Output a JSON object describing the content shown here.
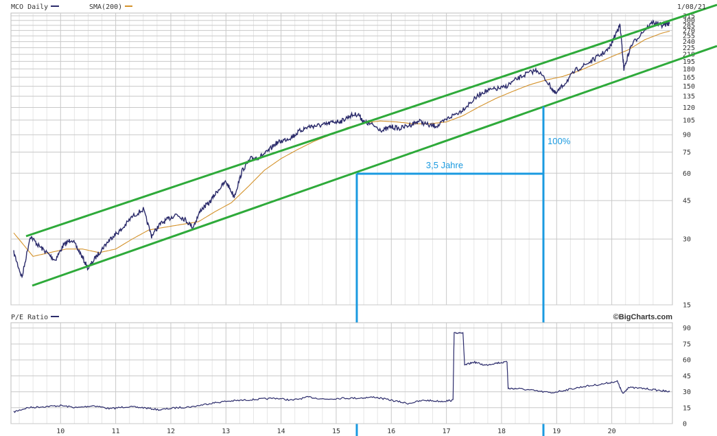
{
  "header": {
    "symbol_label": "MCO Daily",
    "sma_label": "SMA(200)",
    "date": "1/08/21",
    "pe_label": "P/E Ratio",
    "brand": "©BigCharts.com"
  },
  "annotations": {
    "duration_label": "3,5 Jahre",
    "gain_label": "100%"
  },
  "colors": {
    "price": "#2b2b6b",
    "sma": "#d4922a",
    "channel": "#2eaa3a",
    "measure": "#1a9ae0",
    "grid": "#c8c8c8"
  },
  "chart_data": [
    {
      "type": "line",
      "title": "MCO Daily",
      "scale": "log",
      "ylim": [
        15,
        315
      ],
      "y_ticks": [
        15,
        30,
        45,
        60,
        75,
        90,
        105,
        120,
        135,
        150,
        165,
        180,
        195,
        210,
        225,
        240,
        255,
        270,
        285,
        300,
        315
      ],
      "x_tick_labels": [
        "10",
        "11",
        "12",
        "13",
        "14",
        "15",
        "16",
        "17",
        "18",
        "19",
        "20"
      ],
      "x_range": [
        2009.1,
        2021.1
      ],
      "grid": true,
      "series": [
        {
          "name": "MCO Daily",
          "x": [
            2009.15,
            2009.3,
            2009.45,
            2009.6,
            2009.75,
            2009.9,
            2010.05,
            2010.2,
            2010.35,
            2010.5,
            2010.65,
            2010.8,
            2010.95,
            2011.1,
            2011.3,
            2011.5,
            2011.65,
            2011.8,
            2011.95,
            2012.1,
            2012.25,
            2012.4,
            2012.55,
            2012.7,
            2012.85,
            2013.0,
            2013.15,
            2013.3,
            2013.45,
            2013.6,
            2013.75,
            2013.9,
            2014.05,
            2014.2,
            2014.35,
            2014.5,
            2014.65,
            2014.8,
            2014.95,
            2015.1,
            2015.25,
            2015.4,
            2015.5,
            2015.65,
            2015.85,
            2016.0,
            2016.15,
            2016.35,
            2016.5,
            2016.7,
            2016.85,
            2017.05,
            2017.25,
            2017.45,
            2017.65,
            2017.85,
            2018.05,
            2018.25,
            2018.45,
            2018.65,
            2018.85,
            2018.98,
            2019.15,
            2019.35,
            2019.55,
            2019.75,
            2019.95,
            2020.1,
            2020.15,
            2020.22,
            2020.35,
            2020.55,
            2020.75,
            2020.9,
            2021.05
          ],
          "values": [
            26,
            20,
            31,
            28,
            26,
            24,
            28,
            30,
            26,
            22,
            25,
            28,
            31,
            33,
            38,
            41,
            31,
            35,
            37,
            39,
            37,
            34,
            41,
            44,
            50,
            55,
            47,
            62,
            70,
            71,
            75,
            82,
            85,
            88,
            94,
            98,
            99,
            100,
            103,
            104,
            110,
            112,
            103,
            100,
            94,
            98,
            96,
            100,
            104,
            99,
            99,
            108,
            115,
            127,
            141,
            145,
            148,
            160,
            171,
            178,
            155,
            138,
            155,
            178,
            190,
            205,
            222,
            270,
            285,
            180,
            230,
            265,
            295,
            285,
            290
          ]
        },
        {
          "name": "SMA(200)",
          "x": [
            2009.15,
            2009.5,
            2009.8,
            2010.1,
            2010.4,
            2010.7,
            2011.0,
            2011.3,
            2011.6,
            2011.9,
            2012.2,
            2012.5,
            2012.8,
            2013.1,
            2013.4,
            2013.7,
            2014.0,
            2014.3,
            2014.6,
            2014.9,
            2015.2,
            2015.5,
            2015.8,
            2016.1,
            2016.4,
            2016.7,
            2017.0,
            2017.3,
            2017.6,
            2017.9,
            2018.2,
            2018.5,
            2018.8,
            2019.1,
            2019.4,
            2019.7,
            2020.0,
            2020.3,
            2020.6,
            2020.9,
            2021.05
          ],
          "values": [
            32,
            25,
            26,
            27,
            27,
            26,
            27,
            30,
            33,
            34,
            35,
            36,
            40,
            44,
            52,
            62,
            70,
            77,
            84,
            90,
            97,
            102,
            104,
            103,
            101,
            101,
            103,
            110,
            121,
            132,
            142,
            152,
            160,
            166,
            176,
            190,
            205,
            220,
            245,
            262,
            268
          ]
        }
      ]
    },
    {
      "type": "line",
      "title": "P/E Ratio",
      "ylim": [
        0,
        95
      ],
      "y_ticks": [
        0,
        15,
        30,
        45,
        60,
        75,
        90
      ],
      "x_range": [
        2009.1,
        2021.1
      ],
      "grid": true,
      "series": [
        {
          "name": "P/E Ratio",
          "x": [
            2009.15,
            2009.4,
            2009.7,
            2010.0,
            2010.3,
            2010.6,
            2010.9,
            2011.2,
            2011.5,
            2011.8,
            2012.1,
            2012.4,
            2012.7,
            2013.0,
            2013.3,
            2013.6,
            2013.9,
            2014.2,
            2014.5,
            2014.8,
            2015.1,
            2015.4,
            2015.7,
            2016.0,
            2016.3,
            2016.6,
            2016.9,
            2017.12,
            2017.14,
            2017.3,
            2017.33,
            2017.5,
            2017.7,
            2017.9,
            2018.1,
            2018.12,
            2018.3,
            2018.6,
            2018.9,
            2019.2,
            2019.5,
            2019.8,
            2020.1,
            2020.2,
            2020.3,
            2020.6,
            2020.9,
            2021.05
          ],
          "values": [
            11,
            15,
            16,
            17,
            15,
            17,
            14,
            16,
            15,
            13,
            15,
            16,
            19,
            21,
            22,
            23,
            24,
            22,
            25,
            23,
            24,
            24,
            25,
            22,
            19,
            22,
            21,
            22,
            85,
            86,
            55,
            58,
            55,
            57,
            58,
            33,
            33,
            31,
            29,
            32,
            35,
            37,
            40,
            28,
            34,
            33,
            31,
            30
          ]
        }
      ]
    }
  ]
}
